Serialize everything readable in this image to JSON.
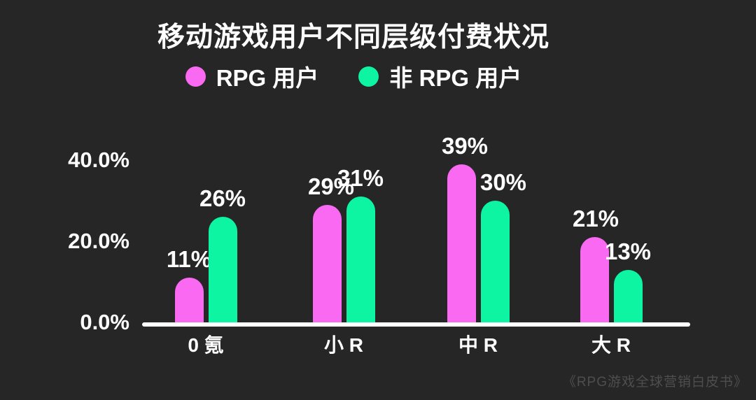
{
  "page": {
    "background_color": "#262626",
    "title": "移动游戏用户不同层级付费状况",
    "source": "《RPG游戏全球营销白皮书》"
  },
  "chart_data": {
    "type": "bar",
    "title": "移动游戏用户不同层级付费状况",
    "categories": [
      "0 氪",
      "小 R",
      "中 R",
      "大 R"
    ],
    "series": [
      {
        "name": "RPG 用户",
        "color": "#FA69F1",
        "values": [
          11,
          29,
          39,
          21
        ],
        "data_labels": [
          "11%",
          "29%",
          "39%",
          "21%"
        ]
      },
      {
        "name": "非 RPG 用户",
        "color": "#0DF5A2",
        "values": [
          26,
          31,
          30,
          13
        ],
        "data_labels": [
          "26%",
          "31%",
          "30%",
          "13%"
        ]
      }
    ],
    "y_axis": {
      "ticks": [
        {
          "label": "0.0%",
          "value": 0
        },
        {
          "label": "20.0%",
          "value": 20
        },
        {
          "label": "40.0%",
          "value": 40
        }
      ],
      "ylim": [
        0,
        45
      ]
    },
    "xlabel": "",
    "ylabel": "",
    "grid": false,
    "legend_position": "top",
    "source": "《RPG游戏全球营销白皮书》",
    "colors": {
      "background": "#262626",
      "text": "#FFFFFF",
      "axis": "#FFFFFF",
      "source_text": "#4E4E4E"
    }
  }
}
